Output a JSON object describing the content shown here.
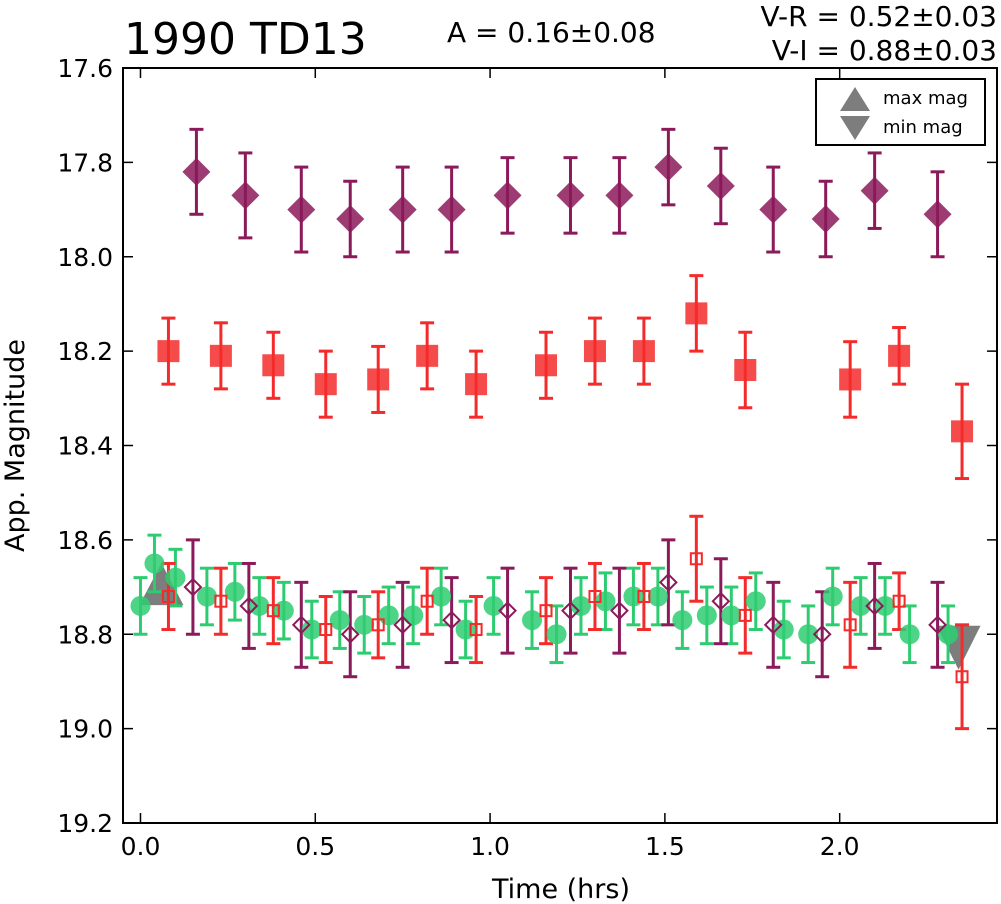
{
  "header": {
    "title": "1990 TD13",
    "amplitude": "A  = 0.16±0.08",
    "color_vr": "V-R = 0.52±0.03",
    "color_vi": "V-I  = 0.88±0.03"
  },
  "legend": {
    "max_label": "max mag",
    "min_label": "min mag"
  },
  "chart_data": {
    "type": "scatter",
    "xlabel": "Time (hrs)",
    "ylabel": "App. Magnitude",
    "xlim": [
      -0.05,
      2.45
    ],
    "ylim": [
      19.2,
      17.6
    ],
    "y_inverted": true,
    "x_ticks": [
      0.0,
      0.5,
      1.0,
      1.5,
      2.0
    ],
    "x_tick_labels": [
      "0.0",
      "0.5",
      "1.0",
      "1.5",
      "2.0"
    ],
    "y_ticks": [
      17.6,
      17.8,
      18.0,
      18.2,
      18.4,
      18.6,
      18.8,
      19.0,
      19.2
    ],
    "y_tick_labels": [
      "17.6",
      "17.8",
      "18.0",
      "18.2",
      "18.4",
      "18.6",
      "18.8",
      "19.0",
      "19.2"
    ],
    "grid": false,
    "legend_position": "top-right",
    "series": [
      {
        "marker": "diamond-filled",
        "color": "#8b1a5a",
        "x": [
          0.16,
          0.3,
          0.46,
          0.6,
          0.75,
          0.89,
          1.05,
          1.23,
          1.37,
          1.51,
          1.66,
          1.81,
          1.96,
          2.1,
          2.28
        ],
        "y": [
          17.82,
          17.87,
          17.9,
          17.92,
          17.9,
          17.9,
          17.87,
          17.87,
          17.87,
          17.81,
          17.85,
          17.9,
          17.92,
          17.86,
          17.91
        ],
        "err": [
          0.09,
          0.09,
          0.09,
          0.08,
          0.09,
          0.09,
          0.08,
          0.08,
          0.08,
          0.08,
          0.08,
          0.09,
          0.08,
          0.08,
          0.09
        ]
      },
      {
        "marker": "square-filled",
        "color": "#f42b2b",
        "x": [
          0.08,
          0.23,
          0.38,
          0.53,
          0.68,
          0.82,
          0.96,
          1.16,
          1.3,
          1.44,
          1.59,
          1.73,
          2.03,
          2.17,
          2.35
        ],
        "y": [
          18.2,
          18.21,
          18.23,
          18.27,
          18.26,
          18.21,
          18.27,
          18.23,
          18.2,
          18.2,
          18.12,
          18.24,
          18.26,
          18.21,
          18.37
        ],
        "err": [
          0.07,
          0.07,
          0.07,
          0.07,
          0.07,
          0.07,
          0.07,
          0.07,
          0.07,
          0.07,
          0.08,
          0.08,
          0.08,
          0.06,
          0.1
        ]
      },
      {
        "marker": "circle-filled",
        "color": "#2ecc71",
        "x": [
          0.0,
          0.04,
          0.1,
          0.19,
          0.27,
          0.34,
          0.41,
          0.49,
          0.57,
          0.64,
          0.71,
          0.78,
          0.86,
          0.93,
          1.01,
          1.12,
          1.19,
          1.26,
          1.33,
          1.41,
          1.48,
          1.55,
          1.62,
          1.69,
          1.76,
          1.84,
          1.91,
          1.98,
          2.06,
          2.13,
          2.2,
          2.31
        ],
        "y": [
          18.74,
          18.65,
          18.68,
          18.72,
          18.71,
          18.74,
          18.75,
          18.79,
          18.77,
          18.78,
          18.76,
          18.76,
          18.72,
          18.79,
          18.74,
          18.77,
          18.8,
          18.74,
          18.73,
          18.72,
          18.72,
          18.77,
          18.76,
          18.76,
          18.73,
          18.79,
          18.8,
          18.72,
          18.74,
          18.74,
          18.8,
          18.8
        ],
        "err": [
          0.06,
          0.06,
          0.06,
          0.06,
          0.06,
          0.06,
          0.06,
          0.06,
          0.06,
          0.06,
          0.06,
          0.06,
          0.06,
          0.06,
          0.06,
          0.06,
          0.06,
          0.06,
          0.06,
          0.06,
          0.06,
          0.06,
          0.06,
          0.06,
          0.06,
          0.06,
          0.06,
          0.06,
          0.06,
          0.06,
          0.06,
          0.06
        ]
      },
      {
        "marker": "diamond-open",
        "color": "#8b1a5a",
        "x": [
          0.15,
          0.31,
          0.46,
          0.6,
          0.75,
          0.89,
          1.05,
          1.23,
          1.37,
          1.51,
          1.66,
          1.81,
          1.95,
          2.1,
          2.28
        ],
        "y": [
          18.7,
          18.74,
          18.78,
          18.8,
          18.78,
          18.77,
          18.75,
          18.75,
          18.75,
          18.69,
          18.73,
          18.78,
          18.8,
          18.74,
          18.78
        ],
        "err": [
          0.1,
          0.09,
          0.09,
          0.09,
          0.09,
          0.09,
          0.09,
          0.09,
          0.09,
          0.09,
          0.09,
          0.09,
          0.09,
          0.09,
          0.09
        ]
      },
      {
        "marker": "square-open",
        "color": "#f42b2b",
        "x": [
          0.08,
          0.23,
          0.38,
          0.53,
          0.68,
          0.82,
          0.96,
          1.16,
          1.3,
          1.44,
          1.59,
          1.73,
          2.03,
          2.17,
          2.35
        ],
        "y": [
          18.72,
          18.73,
          18.75,
          18.79,
          18.78,
          18.73,
          18.79,
          18.75,
          18.72,
          18.72,
          18.64,
          18.76,
          18.78,
          18.73,
          18.89
        ],
        "err": [
          0.07,
          0.07,
          0.07,
          0.07,
          0.07,
          0.07,
          0.07,
          0.07,
          0.07,
          0.07,
          0.09,
          0.08,
          0.09,
          0.06,
          0.11
        ]
      }
    ],
    "extrema": {
      "max_mag": {
        "x": 0.06,
        "y": 18.7,
        "marker": "triangle-up",
        "color": "#666666"
      },
      "min_mag": {
        "x": 2.34,
        "y": 18.82,
        "marker": "triangle-down",
        "color": "#666666"
      }
    }
  }
}
